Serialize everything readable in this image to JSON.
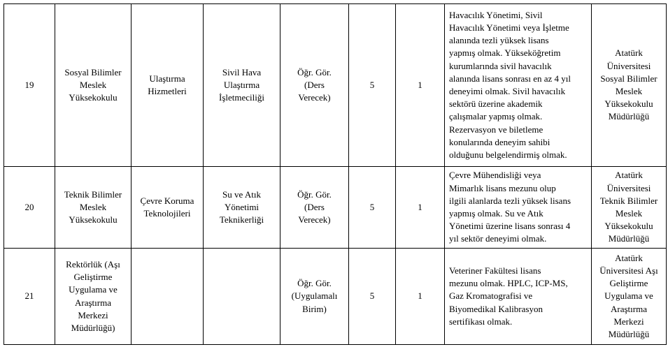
{
  "rows": [
    {
      "no": "19",
      "unit": "Sosyal Bilimler\nMeslek\nYüksekokulu",
      "department": "Ulaştırma\nHizmetleri",
      "program": "Sivil Hava\nUlaştırma\nİşletmeciliği",
      "title": "Öğr. Gör.\n(Ders\nVerecek)",
      "degree": "5",
      "count": "1",
      "requirements": "Havacılık Yönetimi, Sivil\nHavacılık Yönetimi veya İşletme\nalanında tezli yüksek lisans\nyapmış olmak. Yükseköğretim\nkurumlarında sivil havacılık\nalanında lisans sonrası en az 4 yıl\ndeneyimi olmak. Sivil havacılık\nsektörü üzerine akademik\nçalışmalar yapmış olmak.\nRezervasyon ve biletleme\nkonularında deneyim sahibi\nolduğunu belgelendirmiş olmak.",
      "office": "Atatürk\nÜniversitesi\nSosyal Bilimler\nMeslek\nYüksekokulu\nMüdürlüğü"
    },
    {
      "no": "20",
      "unit": "Teknik Bilimler\nMeslek\nYüksekokulu",
      "department": "Çevre Koruma\nTeknolojileri",
      "program": "Su ve Atık Yönetimi\nTeknikerliği",
      "title": "Öğr. Gör.\n(Ders\nVerecek)",
      "degree": "5",
      "count": "1",
      "requirements": "Çevre Mühendisliği veya\nMimarlık lisans mezunu olup\nilgili alanlarda tezli yüksek lisans\nyapmış olmak. Su ve Atık\nYönetimi üzerine lisans sonrası 4\nyıl sektör deneyimi olmak.",
      "office": "Atatürk\nÜniversitesi\nTeknik Bilimler\nMeslek\nYüksekokulu\nMüdürlüğü"
    },
    {
      "no": "21",
      "unit": "Rektörlük (Aşı\nGeliştirme\nUygulama ve\nAraştırma\nMerkezi\nMüdürlüğü)",
      "department": "",
      "program": "",
      "title": "Öğr. Gör.\n(Uygulamalı\nBirim)",
      "degree": "5",
      "count": "1",
      "requirements": "Veteriner Fakültesi lisans\nmezunu olmak. HPLC, ICP-MS,\nGaz Kromatografisi ve\nBiyomedikal Kalibrasyon\nsertifikası olmak.",
      "office": "Atatürk\nÜniversitesi Aşı\nGeliştirme\nUygulama ve\nAraştırma\nMerkezi\nMüdürlüğü"
    }
  ]
}
